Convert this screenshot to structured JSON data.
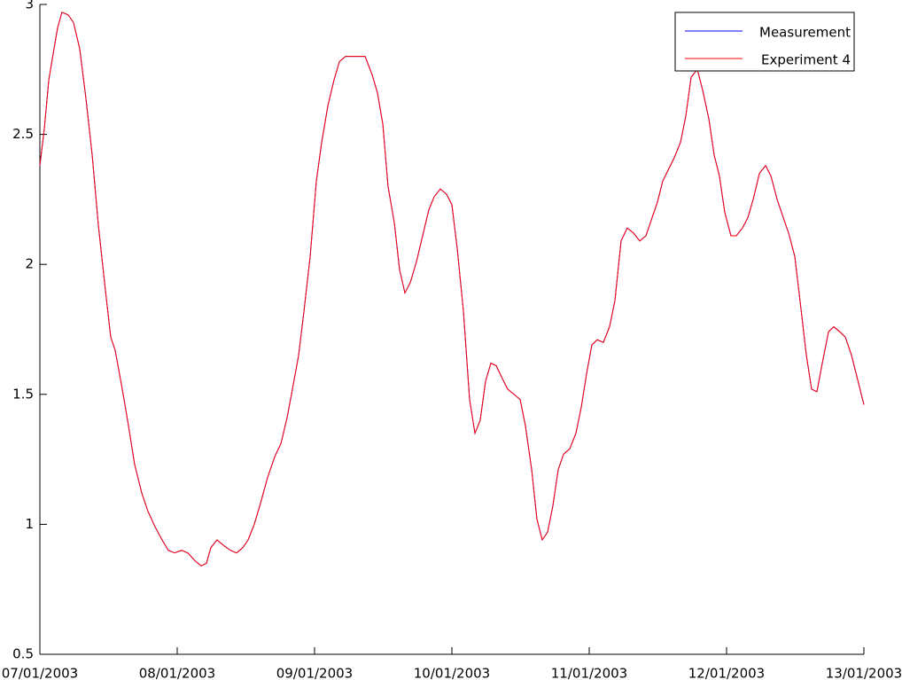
{
  "chart_data": {
    "type": "line",
    "x": [
      0,
      0.032,
      0.065,
      0.097,
      0.129,
      0.161,
      0.206,
      0.245,
      0.29,
      0.335,
      0.381,
      0.426,
      0.471,
      0.516,
      0.548,
      0.6,
      0.645,
      0.69,
      0.742,
      0.787,
      0.839,
      0.89,
      0.935,
      0.981,
      1.032,
      1.077,
      1.129,
      1.174,
      1.213,
      1.245,
      1.29,
      1.335,
      1.387,
      1.432,
      1.477,
      1.516,
      1.561,
      1.606,
      1.658,
      1.71,
      1.755,
      1.8,
      1.839,
      1.884,
      1.923,
      1.968,
      2.013,
      2.052,
      2.097,
      2.142,
      2.181,
      2.226,
      2.271,
      2.323,
      2.368,
      2.419,
      2.458,
      2.497,
      2.535,
      2.581,
      2.619,
      2.658,
      2.697,
      2.742,
      2.787,
      2.832,
      2.871,
      2.916,
      2.961,
      3,
      3.039,
      3.084,
      3.129,
      3.168,
      3.206,
      3.245,
      3.284,
      3.323,
      3.368,
      3.406,
      3.452,
      3.497,
      3.535,
      3.581,
      3.619,
      3.658,
      3.697,
      3.735,
      3.774,
      3.813,
      3.858,
      3.903,
      3.942,
      3.981,
      4.019,
      4.058,
      4.103,
      4.148,
      4.187,
      4.232,
      4.277,
      4.323,
      4.368,
      4.413,
      4.458,
      4.497,
      4.535,
      4.581,
      4.619,
      4.665,
      4.703,
      4.742,
      4.787,
      4.826,
      4.871,
      4.91,
      4.948,
      4.987,
      5.032,
      5.071,
      5.116,
      5.155,
      5.194,
      5.239,
      5.284,
      5.323,
      5.368,
      5.413,
      5.452,
      5.497,
      5.535,
      5.581,
      5.619,
      5.658,
      5.697,
      5.742,
      5.781,
      5.826,
      5.865,
      5.91,
      5.948,
      6
    ],
    "series": [
      {
        "name": "Measurement",
        "color": "#0000ff",
        "values": [
          2.38,
          2.52,
          2.71,
          2.81,
          2.91,
          2.97,
          2.96,
          2.93,
          2.83,
          2.64,
          2.42,
          2.15,
          1.93,
          1.72,
          1.67,
          1.52,
          1.38,
          1.23,
          1.12,
          1.05,
          0.99,
          0.94,
          0.9,
          0.89,
          0.9,
          0.89,
          0.86,
          0.84,
          0.85,
          0.91,
          0.94,
          0.92,
          0.9,
          0.89,
          0.91,
          0.94,
          1.0,
          1.08,
          1.18,
          1.26,
          1.31,
          1.41,
          1.52,
          1.65,
          1.82,
          2.03,
          2.32,
          2.47,
          2.61,
          2.71,
          2.78,
          2.8,
          2.8,
          2.8,
          2.8,
          2.73,
          2.66,
          2.54,
          2.3,
          2.16,
          1.98,
          1.89,
          1.93,
          2.01,
          2.11,
          2.21,
          2.26,
          2.29,
          2.27,
          2.23,
          2.06,
          1.82,
          1.48,
          1.35,
          1.4,
          1.55,
          1.62,
          1.61,
          1.56,
          1.52,
          1.5,
          1.48,
          1.38,
          1.21,
          1.02,
          0.94,
          0.97,
          1.07,
          1.21,
          1.27,
          1.29,
          1.35,
          1.45,
          1.58,
          1.69,
          1.71,
          1.7,
          1.76,
          1.86,
          2.09,
          2.14,
          2.12,
          2.09,
          2.11,
          2.18,
          2.24,
          2.32,
          2.37,
          2.41,
          2.47,
          2.57,
          2.72,
          2.75,
          2.67,
          2.56,
          2.42,
          2.34,
          2.2,
          2.11,
          2.11,
          2.14,
          2.18,
          2.25,
          2.35,
          2.38,
          2.34,
          2.25,
          2.18,
          2.12,
          2.03,
          1.86,
          1.65,
          1.52,
          1.51,
          1.62,
          1.74,
          1.76,
          1.74,
          1.72,
          1.65,
          1.57,
          1.46
        ]
      },
      {
        "name": "Experiment 4",
        "color": "#ff0000",
        "values": [
          2.38,
          2.52,
          2.71,
          2.81,
          2.91,
          2.97,
          2.96,
          2.93,
          2.83,
          2.64,
          2.42,
          2.15,
          1.93,
          1.72,
          1.67,
          1.52,
          1.38,
          1.23,
          1.12,
          1.05,
          0.99,
          0.94,
          0.9,
          0.89,
          0.9,
          0.89,
          0.86,
          0.84,
          0.85,
          0.91,
          0.94,
          0.92,
          0.9,
          0.89,
          0.91,
          0.94,
          1.0,
          1.08,
          1.18,
          1.26,
          1.31,
          1.41,
          1.52,
          1.65,
          1.82,
          2.03,
          2.32,
          2.47,
          2.61,
          2.71,
          2.78,
          2.8,
          2.8,
          2.8,
          2.8,
          2.73,
          2.66,
          2.54,
          2.3,
          2.16,
          1.98,
          1.89,
          1.93,
          2.01,
          2.11,
          2.21,
          2.26,
          2.29,
          2.27,
          2.23,
          2.06,
          1.82,
          1.48,
          1.35,
          1.4,
          1.55,
          1.62,
          1.61,
          1.56,
          1.52,
          1.5,
          1.48,
          1.38,
          1.21,
          1.02,
          0.94,
          0.97,
          1.07,
          1.21,
          1.27,
          1.29,
          1.35,
          1.45,
          1.58,
          1.69,
          1.71,
          1.7,
          1.76,
          1.86,
          2.09,
          2.14,
          2.12,
          2.09,
          2.11,
          2.18,
          2.24,
          2.32,
          2.37,
          2.41,
          2.47,
          2.57,
          2.72,
          2.75,
          2.67,
          2.56,
          2.42,
          2.34,
          2.2,
          2.11,
          2.11,
          2.14,
          2.18,
          2.25,
          2.35,
          2.38,
          2.34,
          2.25,
          2.18,
          2.12,
          2.03,
          1.86,
          1.65,
          1.52,
          1.51,
          1.62,
          1.74,
          1.76,
          1.74,
          1.72,
          1.65,
          1.57,
          1.46
        ]
      }
    ],
    "xlim": [
      0,
      6
    ],
    "xticks": [
      {
        "value": 0,
        "label": "07/01/2003"
      },
      {
        "value": 1,
        "label": "08/01/2003"
      },
      {
        "value": 2,
        "label": "09/01/2003"
      },
      {
        "value": 3,
        "label": "10/01/2003"
      },
      {
        "value": 4,
        "label": "11/01/2003"
      },
      {
        "value": 5,
        "label": "12/01/2003"
      },
      {
        "value": 6,
        "label": "13/01/2003"
      }
    ],
    "ylim": [
      0.5,
      3
    ],
    "yticks": [
      0.5,
      1,
      1.5,
      2,
      2.5,
      3
    ],
    "legend": "top-right"
  }
}
